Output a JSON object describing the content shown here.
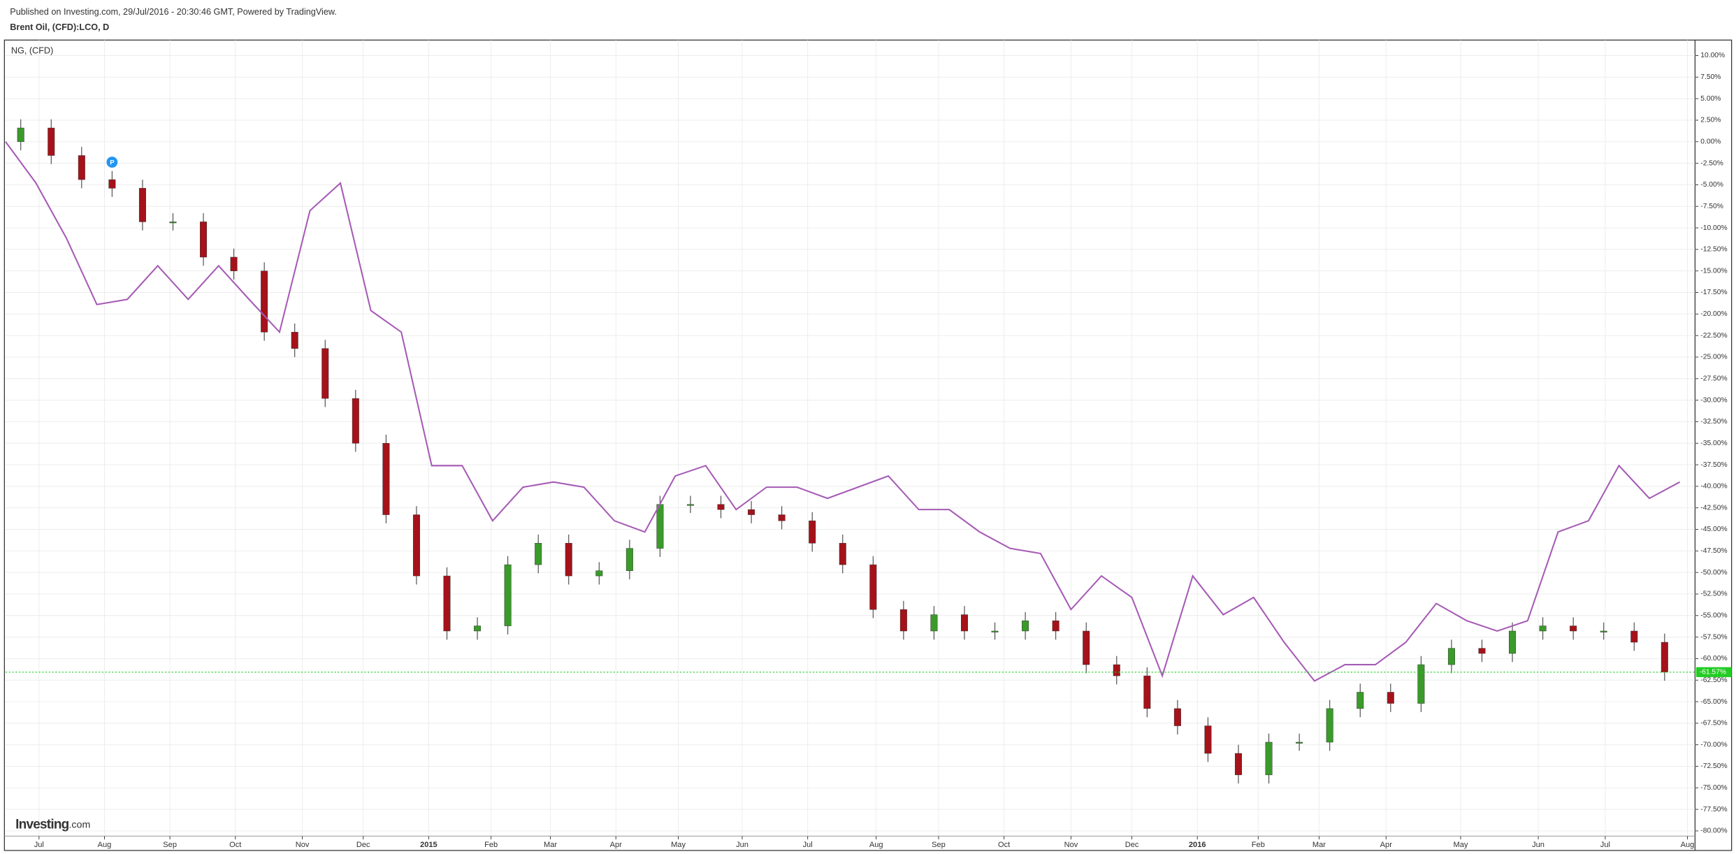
{
  "header": {
    "published": "Published on Investing.com, 29/Jul/2016 - 20:30:46 GMT, Powered by TradingView."
  },
  "logo": {
    "name": "Investing",
    "suffix": ".com"
  },
  "chart_data": {
    "type": "candlestick",
    "grid": true,
    "xlim": [
      0,
      111
    ],
    "ylim": [
      -80.6,
      11.8
    ],
    "xticks": [
      {
        "value": 2.2,
        "label": "Jul"
      },
      {
        "value": 6.5,
        "label": "Aug"
      },
      {
        "value": 10.8,
        "label": "Sep"
      },
      {
        "value": 15.1,
        "label": "Oct"
      },
      {
        "value": 19.5,
        "label": "Nov"
      },
      {
        "value": 23.5,
        "label": "Dec"
      },
      {
        "value": 27.8,
        "label": "2015"
      },
      {
        "value": 31.9,
        "label": "Feb"
      },
      {
        "value": 35.8,
        "label": "Mar"
      },
      {
        "value": 40.1,
        "label": "Apr"
      },
      {
        "value": 44.2,
        "label": "May"
      },
      {
        "value": 48.4,
        "label": "Jun"
      },
      {
        "value": 52.7,
        "label": "Jul"
      },
      {
        "value": 57.2,
        "label": "Aug"
      },
      {
        "value": 61.3,
        "label": "Sep"
      },
      {
        "value": 65.6,
        "label": "Oct"
      },
      {
        "value": 70.0,
        "label": "Nov"
      },
      {
        "value": 74.0,
        "label": "Dec"
      },
      {
        "value": 78.3,
        "label": "2016"
      },
      {
        "value": 82.3,
        "label": "Feb"
      },
      {
        "value": 86.3,
        "label": "Mar"
      },
      {
        "value": 90.7,
        "label": "Apr"
      },
      {
        "value": 95.6,
        "label": "May"
      },
      {
        "value": 100.7,
        "label": "Jun"
      },
      {
        "value": 105.1,
        "label": "Jul"
      },
      {
        "value": 110.5,
        "label": "Aug"
      }
    ],
    "yticks": [
      {
        "value": 10,
        "label": "10.00%"
      },
      {
        "value": 7.5,
        "label": "7.50%"
      },
      {
        "value": 5,
        "label": "5.00%"
      },
      {
        "value": 2.5,
        "label": "2.50%"
      },
      {
        "value": 0,
        "label": "0.00%"
      },
      {
        "value": -2.5,
        "label": "-2.50%"
      },
      {
        "value": -5,
        "label": "-5.00%"
      },
      {
        "value": -7.5,
        "label": "-7.50%"
      },
      {
        "value": -10,
        "label": "-10.00%"
      },
      {
        "value": -12.5,
        "label": "-12.50%"
      },
      {
        "value": -15,
        "label": "-15.00%"
      },
      {
        "value": -17.5,
        "label": "-17.50%"
      },
      {
        "value": -20,
        "label": "-20.00%"
      },
      {
        "value": -22.5,
        "label": "-22.50%"
      },
      {
        "value": -25,
        "label": "-25.00%"
      },
      {
        "value": -27.5,
        "label": "-27.50%"
      },
      {
        "value": -30,
        "label": "-30.00%"
      },
      {
        "value": -32.5,
        "label": "-32.50%"
      },
      {
        "value": -35,
        "label": "-35.00%"
      },
      {
        "value": -37.5,
        "label": "-37.50%"
      },
      {
        "value": -40,
        "label": "-40.00%"
      },
      {
        "value": -42.5,
        "label": "-42.50%"
      },
      {
        "value": -45,
        "label": "-45.00%"
      },
      {
        "value": -47.5,
        "label": "-47.50%"
      },
      {
        "value": -50,
        "label": "-50.00%"
      },
      {
        "value": -52.5,
        "label": "-52.50%"
      },
      {
        "value": -55,
        "label": "-55.00%"
      },
      {
        "value": -57.5,
        "label": "-57.50%"
      },
      {
        "value": -60,
        "label": "-60.00%"
      },
      {
        "value": -62.5,
        "label": "-62.50%"
      },
      {
        "value": -65,
        "label": "-65.00%"
      },
      {
        "value": -67.5,
        "label": "-67.50%"
      },
      {
        "value": -70,
        "label": "-70.00%"
      },
      {
        "value": -72.5,
        "label": "-72.50%"
      },
      {
        "value": -75,
        "label": "-75.00%"
      },
      {
        "value": -77.5,
        "label": "-77.50%"
      },
      {
        "value": -80,
        "label": "-80.00%"
      }
    ],
    "last_value": {
      "value": -61.57,
      "label": "-61.57%",
      "color": "#22cc22"
    },
    "marker": {
      "x": 7,
      "label": "P",
      "color": "#2196f3"
    },
    "series": [
      {
        "name": "Brent Oil, (CFD):LCO, D",
        "type": "candlestick",
        "up_color": "#3a9a2a",
        "down_color": "#a5121a",
        "x": [
          1,
          3,
          5,
          7,
          9,
          11,
          13,
          15,
          17,
          19,
          21,
          23,
          25,
          27,
          29,
          31,
          33,
          35,
          37,
          39,
          41,
          43,
          45,
          47,
          49,
          51,
          53,
          55,
          57,
          59,
          61,
          63,
          65,
          67,
          69,
          71,
          73,
          75,
          77,
          79,
          81,
          83,
          85,
          87,
          89,
          91,
          93,
          95,
          97,
          99,
          101,
          103,
          105,
          107,
          109
        ],
        "open": [
          0,
          1.6,
          -1.6,
          -4.4,
          -5.4,
          -9.3,
          -9.3,
          -13.4,
          -15,
          -22.1,
          -24,
          -29.8,
          -35,
          -43.3,
          -50.4,
          -56.8,
          -56.2,
          -49.1,
          -46.6,
          -50.4,
          -49.8,
          -47.2,
          -42.1,
          -42.1,
          -42.7,
          -43.3,
          -44,
          -46.6,
          -49.1,
          -54.3,
          -56.8,
          -54.9,
          -56.8,
          -56.8,
          -55.6,
          -56.8,
          -60.7,
          -62,
          -65.8,
          -67.8,
          -71,
          -73.5,
          -69.7,
          -69.7,
          -65.8,
          -63.9,
          -65.2,
          -60.7,
          -58.8,
          -59.4,
          -56.8,
          -56.2,
          -56.8,
          -56.8,
          -58.1
        ],
        "high": [
          2.6,
          2.6,
          -0.6,
          -3.4,
          -4.4,
          -8.3,
          -8.3,
          -12.4,
          -14,
          -21.1,
          -23,
          -28.8,
          -34,
          -42.3,
          -49.4,
          -55.2,
          -48.1,
          -45.6,
          -45.6,
          -48.8,
          -46.2,
          -41.1,
          -41.1,
          -41.1,
          -41.7,
          -42.3,
          -43,
          -45.6,
          -48.1,
          -53.3,
          -53.9,
          -53.9,
          -55.8,
          -54.6,
          -54.6,
          -55.8,
          -59.7,
          -61,
          -64.8,
          -66.8,
          -70,
          -68.7,
          -68.7,
          -64.8,
          -62.9,
          -62.9,
          -59.7,
          -57.8,
          -57.8,
          -55.8,
          -55.2,
          -55.2,
          -55.8,
          -55.8,
          -57.1
        ],
        "low": [
          -1,
          -2.6,
          -5.4,
          -6.4,
          -10.3,
          -10.3,
          -14.4,
          -16,
          -23.1,
          -25,
          -30.8,
          -36,
          -44.3,
          -51.4,
          -57.8,
          -57.8,
          -57.2,
          -50.1,
          -51.4,
          -51.4,
          -50.8,
          -48.2,
          -43.1,
          -43.7,
          -44.3,
          -45,
          -47.6,
          -50.1,
          -55.3,
          -57.8,
          -57.8,
          -57.8,
          -57.8,
          -57.8,
          -57.8,
          -61.7,
          -63,
          -66.8,
          -68.8,
          -72,
          -74.5,
          -74.5,
          -70.7,
          -70.7,
          -66.8,
          -66.2,
          -66.2,
          -61.7,
          -60.4,
          -60.4,
          -57.8,
          -57.8,
          -57.8,
          -59.1,
          -62.57
        ],
        "close": [
          1.6,
          -1.6,
          -4.4,
          -5.4,
          -9.3,
          -9.3,
          -13.4,
          -15,
          -22.1,
          -24,
          -29.8,
          -35,
          -43.3,
          -50.4,
          -56.8,
          -56.2,
          -49.1,
          -46.6,
          -50.4,
          -49.8,
          -47.2,
          -42.1,
          -42.1,
          -42.7,
          -43.3,
          -44,
          -46.6,
          -49.1,
          -54.3,
          -56.8,
          -54.9,
          -56.8,
          -56.8,
          -55.6,
          -56.8,
          -60.7,
          -62,
          -65.8,
          -67.8,
          -71,
          -73.5,
          -69.7,
          -69.7,
          -65.8,
          -63.9,
          -65.2,
          -60.7,
          -58.8,
          -59.4,
          -56.8,
          -56.2,
          -56.8,
          -56.8,
          -58.1,
          -61.57
        ]
      },
      {
        "name": "NG,  (CFD)",
        "type": "line",
        "color": "#a65bb5",
        "x": [
          0,
          2,
          4,
          6,
          8,
          10,
          12,
          14,
          16,
          18,
          20,
          22,
          24,
          26,
          28,
          30,
          32,
          34,
          36,
          38,
          40,
          42,
          44,
          46,
          48,
          50,
          52,
          54,
          56,
          58,
          60,
          62,
          64,
          66,
          68,
          70,
          72,
          74,
          76,
          78,
          80,
          82,
          84,
          86,
          88,
          90,
          92,
          94,
          96,
          98,
          100,
          102,
          104,
          106,
          108,
          110
        ],
        "values": [
          0,
          -4.8,
          -11.2,
          -18.9,
          -18.3,
          -14.4,
          -18.3,
          -14.4,
          -18.3,
          -22.1,
          -8,
          -4.8,
          -19.6,
          -22.1,
          -37.6,
          -37.6,
          -44,
          -40.1,
          -39.5,
          -40.1,
          -44,
          -45.3,
          -38.8,
          -37.6,
          -42.7,
          -40.1,
          -40.1,
          -41.4,
          -40.1,
          -38.8,
          -42.7,
          -42.7,
          -45.3,
          -47.2,
          -47.8,
          -54.3,
          -50.4,
          -52.9,
          -62,
          -50.4,
          -54.9,
          -52.9,
          -58.1,
          -62.6,
          -60.7,
          -60.7,
          -58.1,
          -53.6,
          -55.6,
          -56.8,
          -55.6,
          -45.3,
          -44,
          -37.6,
          -41.4,
          -39.5
        ]
      }
    ]
  }
}
